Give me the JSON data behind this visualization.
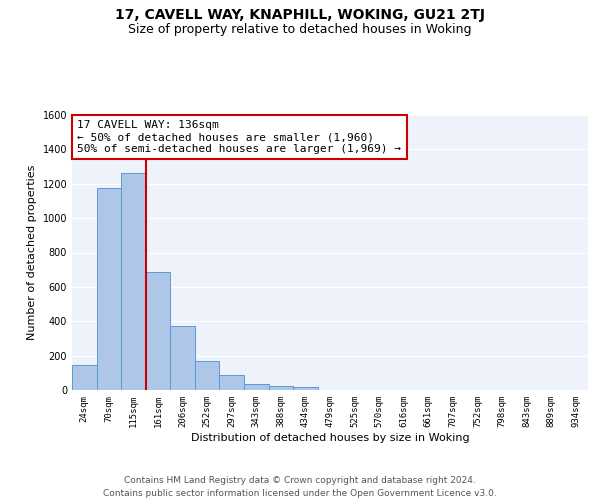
{
  "title": "17, CAVELL WAY, KNAPHILL, WOKING, GU21 2TJ",
  "subtitle": "Size of property relative to detached houses in Woking",
  "xlabel": "Distribution of detached houses by size in Woking",
  "ylabel": "Number of detached properties",
  "bin_labels": [
    "24sqm",
    "70sqm",
    "115sqm",
    "161sqm",
    "206sqm",
    "252sqm",
    "297sqm",
    "343sqm",
    "388sqm",
    "434sqm",
    "479sqm",
    "525sqm",
    "570sqm",
    "616sqm",
    "661sqm",
    "707sqm",
    "752sqm",
    "798sqm",
    "843sqm",
    "889sqm",
    "934sqm"
  ],
  "bar_values": [
    148,
    1175,
    1260,
    685,
    375,
    170,
    85,
    35,
    22,
    15,
    0,
    0,
    0,
    0,
    0,
    0,
    0,
    0,
    0,
    0,
    0
  ],
  "bar_color": "#aec6e8",
  "bar_edge_color": "#5b9bd5",
  "bg_color": "#eef3fb",
  "grid_color": "#ffffff",
  "vline_x": 2.5,
  "vline_color": "#cc0000",
  "annotation_text": "17 CAVELL WAY: 136sqm\n← 50% of detached houses are smaller (1,960)\n50% of semi-detached houses are larger (1,969) →",
  "annotation_box_color": "#ffffff",
  "annotation_box_edge": "#cc0000",
  "ylim": [
    0,
    1600
  ],
  "yticks": [
    0,
    200,
    400,
    600,
    800,
    1000,
    1200,
    1400,
    1600
  ],
  "footer": "Contains HM Land Registry data © Crown copyright and database right 2024.\nContains public sector information licensed under the Open Government Licence v3.0.",
  "title_fontsize": 10,
  "subtitle_fontsize": 9,
  "annotation_fontsize": 8,
  "footer_fontsize": 6.5,
  "ylabel_fontsize": 8,
  "xlabel_fontsize": 8,
  "tick_fontsize": 6.5
}
